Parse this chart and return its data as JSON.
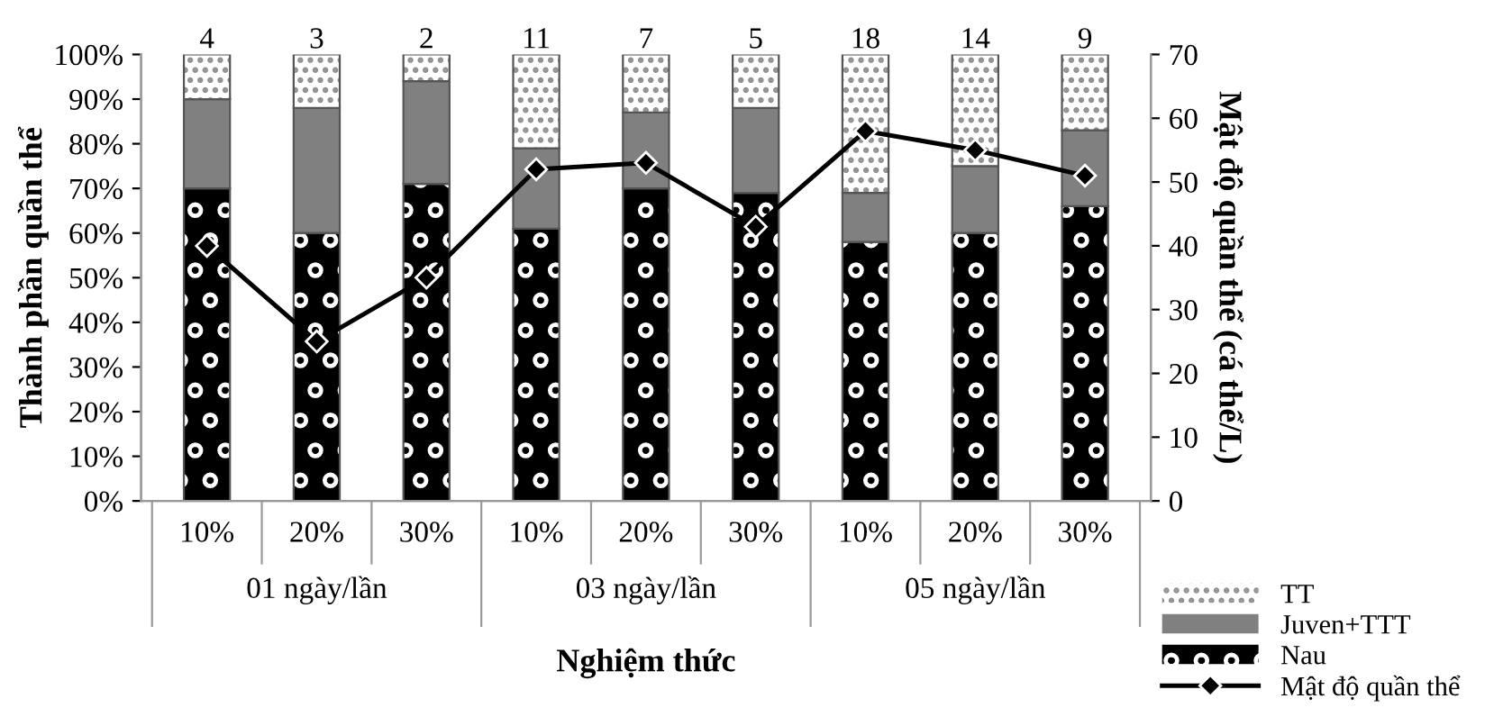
{
  "chart_data": {
    "type": "bar",
    "stacked": true,
    "xlabel": "Nghiệm thức",
    "ylabel": "Thành phần quần thể",
    "y2label": "Mật độ quần thể (cá thể/L)",
    "categories": [
      "10%",
      "20%",
      "30%",
      "10%",
      "20%",
      "30%",
      "10%",
      "20%",
      "30%"
    ],
    "series": [
      {
        "name": "Nau",
        "color": "#000000",
        "values": [
          70,
          60,
          71,
          61,
          70,
          69,
          58,
          60,
          66
        ]
      },
      {
        "name": "Juven+TTT",
        "color": "#808080",
        "values": [
          20,
          28,
          23,
          18,
          17,
          19,
          11,
          15,
          17
        ]
      },
      {
        "name": "TT",
        "color": "#ffffff",
        "values": [
          10,
          12,
          6,
          21,
          13,
          12,
          31,
          25,
          17
        ]
      },
      {
        "name": "Mật độ quần thể",
        "type": "line",
        "axis": "y2",
        "color": "#000000",
        "marker": "diamond",
        "values": [
          40,
          25,
          35,
          52,
          53,
          43,
          58,
          55,
          51
        ]
      }
    ],
    "annotations": [
      "4",
      "3",
      "2",
      "11",
      "7",
      "5",
      "18",
      "14",
      "9",
      "01 ngày/lần",
      "03 ngày/lần",
      "05 ngày/lần"
    ],
    "ylim": [
      0,
      100
    ],
    "yticks": [
      {
        "value": 0,
        "label": "0%"
      },
      {
        "value": 10,
        "label": "10%"
      },
      {
        "value": 20,
        "label": "20%"
      },
      {
        "value": 30,
        "label": "30%"
      },
      {
        "value": 40,
        "label": "40%"
      },
      {
        "value": 50,
        "label": "50%"
      },
      {
        "value": 60,
        "label": "60%"
      },
      {
        "value": 70,
        "label": "70%"
      },
      {
        "value": 80,
        "label": "80%"
      },
      {
        "value": 90,
        "label": "90%"
      },
      {
        "value": 100,
        "label": "100%"
      }
    ],
    "y2lim": [
      0,
      70
    ],
    "y2ticks": [
      0,
      10,
      20,
      30,
      40,
      50,
      60,
      70
    ],
    "grid": false,
    "legend": "bottom right"
  }
}
